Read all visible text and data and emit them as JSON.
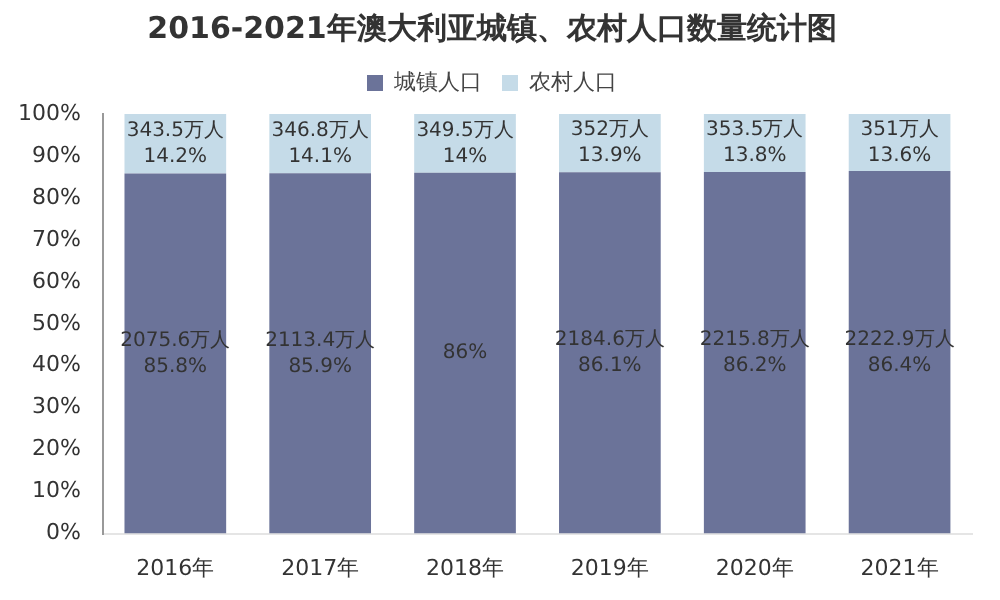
{
  "chart_data": {
    "type": "bar",
    "title": "2016-2021年澳大利亚城镇、农村人口数量统计图",
    "categories": [
      "2016年",
      "2017年",
      "2018年",
      "2019年",
      "2020年",
      "2021年"
    ],
    "stacked": true,
    "legend": "top",
    "series": [
      {
        "name": "城镇人口",
        "color": "#6b7399",
        "values": [
          85.8,
          85.9,
          86,
          86.1,
          86.2,
          86.4
        ],
        "value_labels": [
          "2075.6万人\n85.8%",
          "2113.4万人\n85.9%",
          "86%",
          "2184.6万人\n86.1%",
          "2215.8万人\n86.2%",
          "2222.9万人\n86.4%"
        ]
      },
      {
        "name": "农村人口",
        "color": "#c5dbe8",
        "values": [
          14.2,
          14.1,
          14,
          13.9,
          13.8,
          13.6
        ],
        "value_labels": [
          "343.5万人\n14.2%",
          "346.8万人\n14.1%",
          "349.5万人\n14%",
          "352万人\n13.9%",
          "353.5万人\n13.8%",
          "351万人\n13.6%"
        ]
      }
    ],
    "ylim": [
      0,
      100
    ],
    "yticks": [
      {
        "value": 0,
        "label": "0%"
      },
      {
        "value": 10,
        "label": "10%"
      },
      {
        "value": 20,
        "label": "20%"
      },
      {
        "value": 30,
        "label": "30%"
      },
      {
        "value": 40,
        "label": "40%"
      },
      {
        "value": 50,
        "label": "50%"
      },
      {
        "value": 60,
        "label": "60%"
      },
      {
        "value": 70,
        "label": "70%"
      },
      {
        "value": 80,
        "label": "80%"
      },
      {
        "value": 90,
        "label": "90%"
      },
      {
        "value": 100,
        "label": "100%"
      }
    ],
    "grid": false
  }
}
